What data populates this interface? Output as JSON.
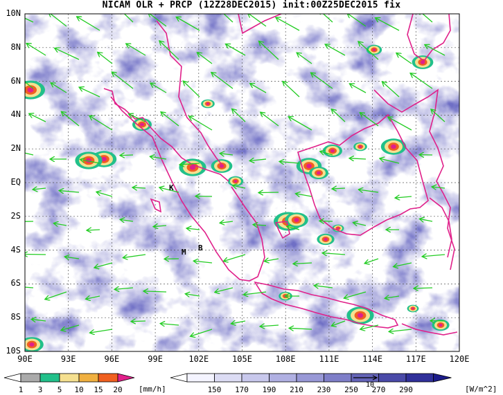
{
  "title": "NICAM OLR + PRCP (12Z28DEC2015) init:00Z25DEC2015 fix",
  "map": {
    "lat_labels": [
      "10N",
      "8N",
      "6N",
      "4N",
      "2N",
      "EQ",
      "2S",
      "4S",
      "6S",
      "8S",
      "10S"
    ],
    "lon_labels": [
      "90E",
      "93E",
      "96E",
      "99E",
      "102E",
      "105E",
      "108E",
      "111E",
      "114E",
      "117E",
      "120E"
    ],
    "place_labels": [
      "K",
      "M",
      "B"
    ],
    "colors": {
      "coast": "#e0208a",
      "wind": "#22cc22",
      "grid": "#555555"
    }
  },
  "precip_legend": {
    "ticks": [
      "1",
      "3",
      "5",
      "10",
      "15",
      "20"
    ],
    "unit": "[mm/h]",
    "colors": [
      "#aaaaaa",
      "#22c08a",
      "#f5e090",
      "#f0b040",
      "#f06020",
      "#e0208a"
    ]
  },
  "olr_legend": {
    "ticks": [
      "150",
      "170",
      "190",
      "210",
      "230",
      "250",
      "270",
      "290"
    ],
    "unit": "[W/m^2]",
    "vector_ref": "10",
    "colors": [
      "#f4f4ff",
      "#dcdcf4",
      "#c8c8ec",
      "#b0b0e2",
      "#9898d6",
      "#7e7ec8",
      "#6464b8",
      "#4a4aa8",
      "#30309a",
      "#1c1c8a"
    ]
  }
}
